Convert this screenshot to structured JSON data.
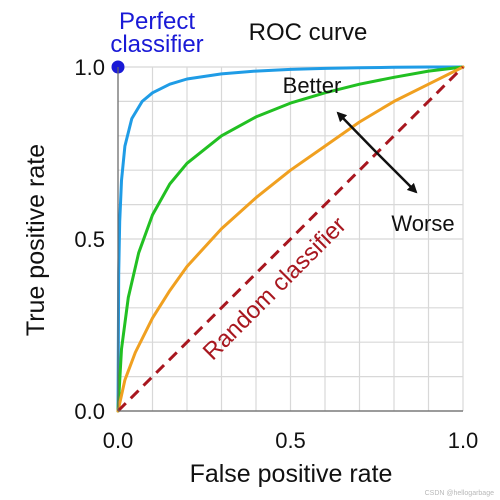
{
  "chart_data": {
    "type": "line",
    "title": "ROC curve",
    "xlabel": "False positive rate",
    "ylabel": "True positive rate",
    "xlim": [
      0,
      1
    ],
    "ylim": [
      0,
      1
    ],
    "grid": true,
    "x_ticks": [
      "0.0",
      "0.5",
      "1.0"
    ],
    "y_ticks": [
      "0.0",
      "0.5",
      "1.0"
    ],
    "series": [
      {
        "color": "#1f9ce6",
        "x": [
          0,
          0.002,
          0.005,
          0.01,
          0.02,
          0.04,
          0.07,
          0.1,
          0.15,
          0.2,
          0.3,
          0.4,
          0.5,
          0.6,
          0.7,
          0.8,
          0.9,
          1.0
        ],
        "y": [
          0,
          0.4,
          0.55,
          0.67,
          0.77,
          0.85,
          0.9,
          0.925,
          0.95,
          0.965,
          0.98,
          0.988,
          0.993,
          0.996,
          0.998,
          0.999,
          1.0,
          1.0
        ]
      },
      {
        "color": "#22c022",
        "x": [
          0,
          0.01,
          0.03,
          0.06,
          0.1,
          0.15,
          0.2,
          0.3,
          0.4,
          0.5,
          0.6,
          0.7,
          0.8,
          0.9,
          1.0
        ],
        "y": [
          0,
          0.18,
          0.33,
          0.46,
          0.57,
          0.66,
          0.72,
          0.8,
          0.855,
          0.895,
          0.925,
          0.95,
          0.97,
          0.988,
          1.0
        ]
      },
      {
        "color": "#f0a020",
        "x": [
          0,
          0.02,
          0.05,
          0.1,
          0.15,
          0.2,
          0.3,
          0.4,
          0.5,
          0.6,
          0.7,
          0.8,
          0.9,
          1.0
        ],
        "y": [
          0,
          0.09,
          0.17,
          0.27,
          0.35,
          0.42,
          0.53,
          0.62,
          0.7,
          0.77,
          0.84,
          0.9,
          0.95,
          1.0
        ]
      },
      {
        "color": "#a8171f",
        "dashed": true,
        "x": [
          0,
          1
        ],
        "y": [
          0,
          1
        ]
      }
    ],
    "points": [
      {
        "x": 0,
        "y": 1,
        "color": "#1a1ad6"
      }
    ],
    "annotations": {
      "perfect_line1": "Perfect",
      "perfect_line2": "classifier",
      "better": "Better",
      "worse": "Worse",
      "random": "Random classifier"
    }
  },
  "watermark": "CSDN @hellogarbage"
}
